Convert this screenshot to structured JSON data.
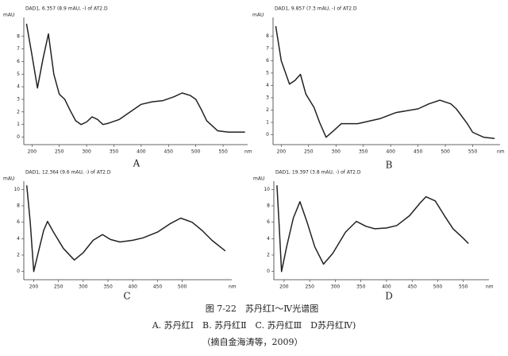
{
  "chart_data": [
    {
      "type": "line",
      "title": "DAD1, 6.357 (8.9 mAU, -) of AT2.D",
      "label": "A",
      "y_label": "mAU",
      "x_label": "nm",
      "color": "#222",
      "x": [
        190,
        200,
        210,
        220,
        230,
        240,
        250,
        260,
        270,
        280,
        290,
        300,
        310,
        320,
        330,
        340,
        360,
        380,
        400,
        420,
        440,
        460,
        475,
        490,
        500,
        510,
        520,
        540,
        560,
        590
      ],
      "series": [
        {
          "name": "A",
          "values": [
            9.0,
            6.5,
            3.9,
            6.2,
            8.2,
            5.0,
            3.4,
            3.0,
            2.1,
            1.3,
            1.0,
            1.2,
            1.6,
            1.4,
            1.0,
            1.1,
            1.4,
            2.0,
            2.6,
            2.8,
            2.9,
            3.2,
            3.5,
            3.3,
            3.0,
            2.2,
            1.3,
            0.5,
            0.4,
            0.4
          ]
        }
      ],
      "xlim": [
        185,
        595
      ],
      "xticks": [
        200,
        250,
        300,
        350,
        400,
        450,
        500,
        550
      ],
      "ylim": [
        -0.6,
        9.5
      ],
      "yticks": [
        0,
        1,
        2,
        3,
        4,
        5,
        6,
        7,
        8
      ]
    },
    {
      "type": "line",
      "title": "DAD1, 9.857 (7.3 mAU, -) of AT2.D",
      "label": "B",
      "y_label": "mAU",
      "x_label": "nm",
      "color": "#222",
      "x": [
        190,
        200,
        215,
        225,
        235,
        245,
        260,
        270,
        282,
        295,
        310,
        340,
        380,
        410,
        450,
        470,
        490,
        510,
        520,
        540,
        550,
        570,
        590
      ],
      "series": [
        {
          "name": "B",
          "values": [
            8.8,
            6.0,
            4.1,
            4.4,
            4.9,
            3.3,
            2.2,
            1.0,
            -0.2,
            0.3,
            0.9,
            0.9,
            1.3,
            1.8,
            2.1,
            2.5,
            2.8,
            2.5,
            2.1,
            0.9,
            0.2,
            -0.2,
            -0.3
          ]
        }
      ],
      "xlim": [
        185,
        600
      ],
      "xticks": [
        200,
        250,
        300,
        350,
        400,
        450,
        500,
        550
      ],
      "ylim": [
        -0.8,
        9.5
      ],
      "yticks": [
        0,
        1,
        2,
        3,
        4,
        5,
        6,
        7,
        8
      ]
    },
    {
      "type": "line",
      "title": "DAD1, 12.364 (9.6 mAU, -) of AT2.D",
      "label": "C",
      "y_label": "mAU",
      "x_label": "nm",
      "color": "#222",
      "x": [
        186,
        193,
        200,
        210,
        220,
        228,
        240,
        260,
        282,
        300,
        320,
        339,
        355,
        374,
        400,
        421,
        450,
        475,
        497,
        520,
        540,
        560,
        587
      ],
      "series": [
        {
          "name": "C",
          "values": [
            10.5,
            6.0,
            0.0,
            2.5,
            5.0,
            6.1,
            4.8,
            2.8,
            1.4,
            2.3,
            3.8,
            4.5,
            3.9,
            3.6,
            3.8,
            4.1,
            4.8,
            5.8,
            6.5,
            6.0,
            5.0,
            3.8,
            2.5
          ]
        }
      ],
      "xlim": [
        180,
        600
      ],
      "xticks": [
        200,
        250,
        300,
        350,
        400,
        450,
        500
      ],
      "ylim": [
        -1,
        11
      ],
      "yticks": [
        0,
        2,
        4,
        6,
        8,
        10
      ]
    },
    {
      "type": "line",
      "title": "DAD1, 19.397 (3.8 mAU, -) of AT2.D",
      "label": "D",
      "y_label": "mAU",
      "x_label": "nm",
      "color": "#222",
      "x": [
        186,
        190,
        195,
        205,
        218,
        231,
        245,
        260,
        277,
        295,
        320,
        341,
        360,
        377,
        400,
        420,
        445,
        465,
        477,
        495,
        513,
        530,
        549,
        560
      ],
      "series": [
        {
          "name": "D",
          "values": [
            10.5,
            6.0,
            0.0,
            3.0,
            6.5,
            8.5,
            6.0,
            3.0,
            0.9,
            2.2,
            4.8,
            6.1,
            5.5,
            5.2,
            5.3,
            5.6,
            6.8,
            8.3,
            9.1,
            8.6,
            6.8,
            5.2,
            4.1,
            3.4
          ]
        }
      ],
      "xlim": [
        180,
        600
      ],
      "xticks": [
        200,
        250,
        300,
        350,
        400,
        450,
        500,
        550
      ],
      "ylim": [
        -1,
        11
      ],
      "yticks": [
        0,
        2,
        4,
        6,
        8,
        10
      ]
    }
  ],
  "caption": {
    "title": "图 7-22　苏丹红Ⅰ～Ⅳ光谱图",
    "legend": "A. 苏丹红Ⅰ　B. 苏丹红Ⅱ　C. 苏丹红Ⅲ　D苏丹红Ⅳ)",
    "source": "（摘自金海涛等，2009）"
  }
}
